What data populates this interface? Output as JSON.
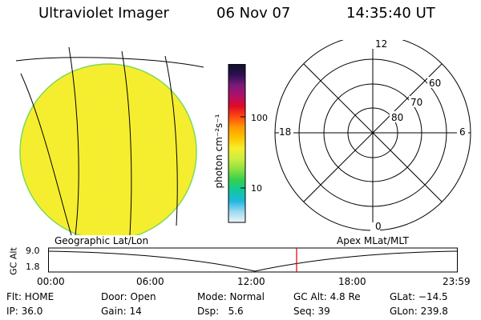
{
  "header": {
    "instrument": "Ultraviolet Imager",
    "date": "06 Nov 07",
    "time": "14:35:40 UT"
  },
  "image_panel": {
    "caption": "Geographic Lat/Lon",
    "fill_color": "#f5ee2e",
    "rim_color": "#7ed957",
    "grid_color": "#000000"
  },
  "colorbar": {
    "label": "photon cm⁻²s⁻¹",
    "ticks": [
      "100",
      "10"
    ],
    "colors_top_to_bottom": [
      "#10102a",
      "#2a1050",
      "#7a1a7a",
      "#b0106a",
      "#e00a28",
      "#ff4a10",
      "#ff9a00",
      "#ffc400",
      "#f5ee2e",
      "#c8ef40",
      "#8ae040",
      "#30d050",
      "#10c8a0",
      "#20b8e0",
      "#a0d8f0",
      "#eaf6fb"
    ]
  },
  "polar_panel": {
    "caption": "Apex MLat/MLT",
    "mlt_labels": [
      "12",
      "18",
      "6",
      "0"
    ],
    "mlat_labels": [
      "60",
      "70",
      "80"
    ]
  },
  "timeline": {
    "ylabel": "GC Alt",
    "y_ticks": [
      "9.0",
      "1.8"
    ],
    "x_ticks": [
      "00:00",
      "06:00",
      "12:00",
      "18:00",
      "23:59"
    ],
    "current_time_color": "#e00000"
  },
  "status": {
    "flt": "Flt: HOME",
    "ip": "IP: 36.0",
    "door": "Door: Open",
    "gain": "Gain: 14",
    "mode": "Mode: Normal",
    "dsp": "Dsp:   5.6",
    "gc_alt": "GC Alt: 4.8 Re",
    "seq": "Seq: 39",
    "glat": "GLat: −14.5",
    "glon": "GLon: 239.8"
  }
}
